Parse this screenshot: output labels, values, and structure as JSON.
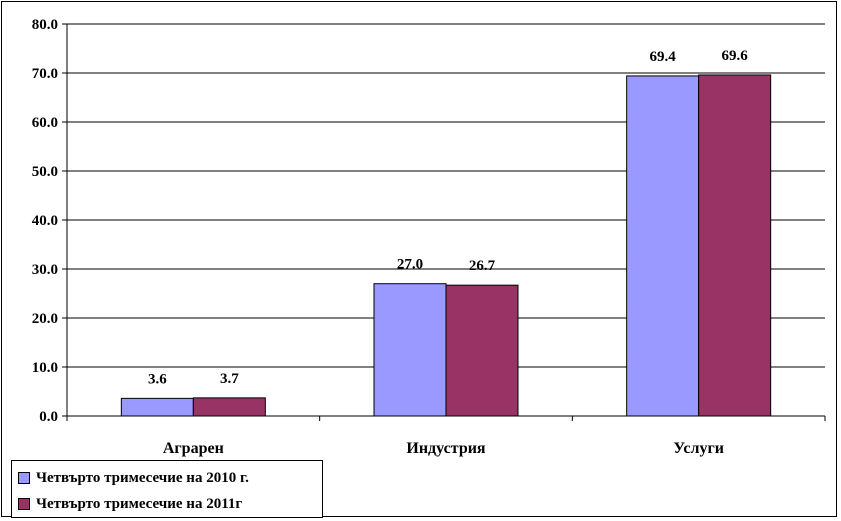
{
  "chart_data": {
    "type": "bar",
    "categories": [
      "Аграрен",
      "Индустрия",
      "Услуги"
    ],
    "series": [
      {
        "name": "Четвърто тримесечие на 2010 г.",
        "values": [
          3.6,
          27.0,
          69.4
        ],
        "labels": [
          "3.6",
          "27.0",
          "69.4"
        ],
        "color": "#9999FF"
      },
      {
        "name": "Четвърто тримесечие на 2011г",
        "values": [
          3.7,
          26.7,
          69.6
        ],
        "labels": [
          "3.7",
          "26.7",
          "69.6"
        ],
        "color": "#993366"
      }
    ],
    "yticks": [
      "0.0",
      "10.0",
      "20.0",
      "30.0",
      "40.0",
      "50.0",
      "60.0",
      "70.0",
      "80.0"
    ],
    "ylim": [
      0,
      80
    ],
    "title": "",
    "xlabel": "",
    "ylabel": "",
    "grid": true,
    "legend_position": "bottom-left"
  }
}
